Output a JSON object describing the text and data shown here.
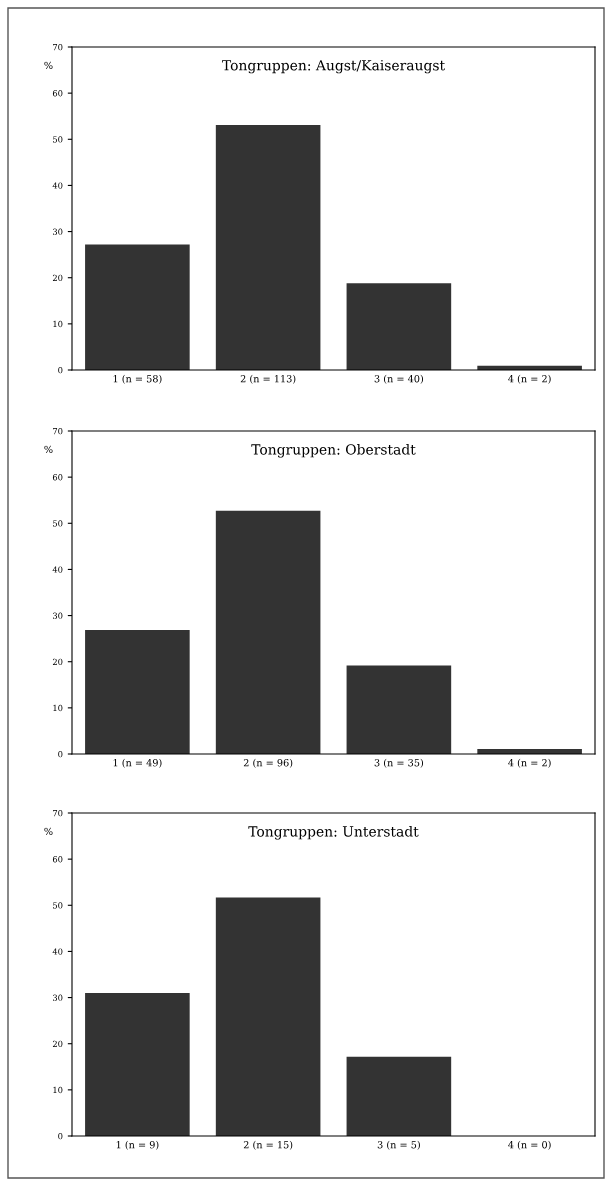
{
  "chart_data": [
    {
      "type": "bar",
      "title": "Tongruppen: Augst/Kaiseraugst",
      "ylabel": "%",
      "categories": [
        "1 (n = 58)",
        "2 (n = 113)",
        "3 (n = 40)",
        "4 (n = 2)"
      ],
      "values": [
        27.2,
        53.1,
        18.8,
        0.9
      ],
      "color": "#333333",
      "ylim": [
        0,
        70
      ],
      "yticks": [
        0,
        10,
        20,
        30,
        40,
        50,
        60,
        70
      ],
      "grid": false,
      "legend": false
    },
    {
      "type": "bar",
      "title": "Tongruppen: Oberstadt",
      "ylabel": "%",
      "categories": [
        "1 (n = 49)",
        "2 (n = 96)",
        "3 (n = 35)",
        "4 (n = 2)"
      ],
      "values": [
        26.9,
        52.7,
        19.2,
        1.1
      ],
      "color": "#333333",
      "ylim": [
        0,
        70
      ],
      "yticks": [
        0,
        10,
        20,
        30,
        40,
        50,
        60,
        70
      ],
      "grid": false,
      "legend": false
    },
    {
      "type": "bar",
      "title": "Tongruppen: Unterstadt",
      "ylabel": "%",
      "categories": [
        "1 (n = 9)",
        "2 (n = 15)",
        "3 (n = 5)",
        "4 (n = 0)"
      ],
      "values": [
        31.0,
        51.7,
        17.2,
        0
      ],
      "color": "#333333",
      "ylim": [
        0,
        70
      ],
      "yticks": [
        0,
        10,
        20,
        30,
        40,
        50,
        60,
        70
      ],
      "grid": false,
      "legend": false
    }
  ]
}
